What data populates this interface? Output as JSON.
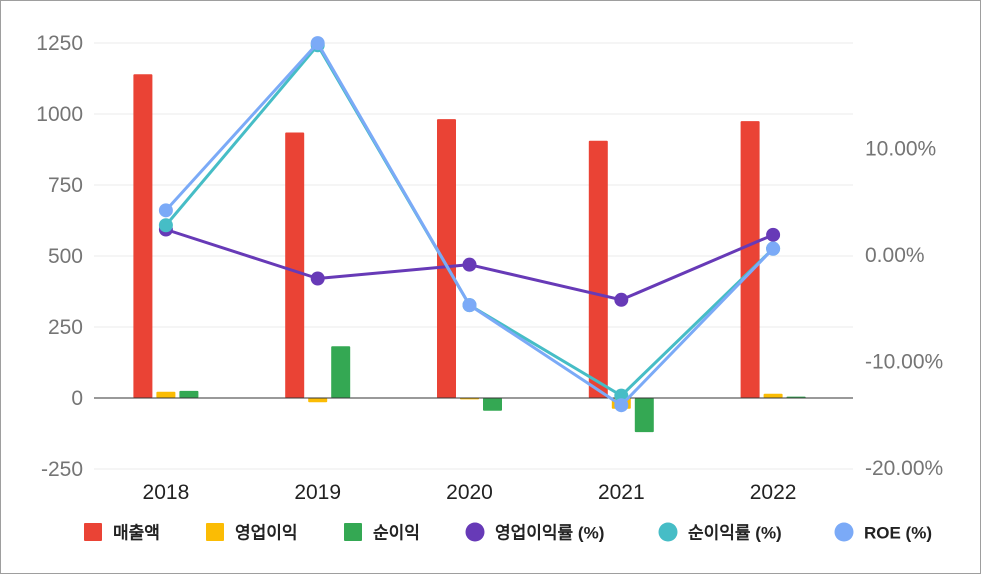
{
  "chart_data": {
    "type": "bar",
    "categories": [
      "2018",
      "2019",
      "2020",
      "2021",
      "2022"
    ],
    "y_left": {
      "ticks": [
        1250,
        1000,
        750,
        500,
        250,
        0,
        -250
      ],
      "tick_labels": [
        "1250",
        "1000",
        "750",
        "500",
        "250",
        "0",
        "-250"
      ],
      "ylim": [
        -250,
        1250
      ]
    },
    "y_right": {
      "ticks": [
        10,
        0,
        -10,
        -20
      ],
      "tick_labels": [
        "10.00%",
        "0.00%",
        "-10.00%",
        "-20.00%"
      ],
      "ylim": [
        -20,
        20
      ],
      "unit": "%"
    },
    "series": [
      {
        "name": "매출액",
        "type": "bar",
        "axis": "left",
        "color": "#ea4335",
        "values": [
          1140,
          935,
          982,
          906,
          975
        ]
      },
      {
        "name": "영업이익",
        "type": "bar",
        "axis": "left",
        "color": "#fbbc04",
        "values": [
          22,
          -15,
          -5,
          -38,
          15
        ]
      },
      {
        "name": "순이익",
        "type": "bar",
        "axis": "left",
        "color": "#34a853",
        "values": [
          25,
          182,
          -45,
          -120,
          5
        ]
      },
      {
        "name": "영업이익률 (%)",
        "type": "line",
        "axis": "right",
        "color": "#673ab7",
        "values": [
          2.3,
          -2.3,
          -1.0,
          -4.3,
          1.8
        ]
      },
      {
        "name": "순이익률 (%)",
        "type": "line",
        "axis": "right",
        "color": "#46bdc6",
        "values": [
          2.7,
          19.6,
          -4.8,
          -13.3,
          0.5
        ]
      },
      {
        "name": "ROE (%)",
        "type": "line",
        "axis": "right",
        "color": "#7baaf7",
        "values": [
          4.1,
          19.8,
          -4.8,
          -14.2,
          0.5
        ]
      }
    ],
    "grid": true,
    "legend_position": "bottom"
  }
}
